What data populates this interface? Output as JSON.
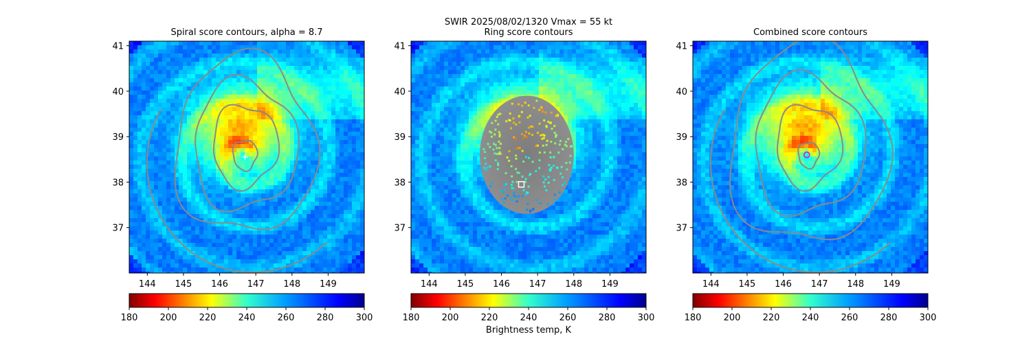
{
  "chart_data": {
    "type": "heatmap",
    "suptitle": "SWIR  2025/08/02/1320    Vmax = 55 kt",
    "colorbar": {
      "label": "Brightness temp, K",
      "range": [
        180,
        300
      ],
      "ticks": [
        180,
        200,
        220,
        240,
        260,
        280,
        300
      ],
      "colormap": "jet_r"
    },
    "storm_center_lonlat": [
      146.7,
      38.6
    ],
    "panels": [
      {
        "title": "Spiral score contours, alpha =  8.7",
        "xlim": [
          143.5,
          150.0
        ],
        "ylim": [
          36.0,
          41.1
        ],
        "xticks": [
          144,
          145,
          146,
          147,
          148,
          149
        ],
        "yticks": [
          37,
          38,
          39,
          40,
          41
        ],
        "marker": {
          "type": "plus",
          "lon": 146.7,
          "lat": 38.55,
          "color": "#ffffff"
        },
        "contour_levels": [
          0.35,
          0.95,
          1.5,
          2.05
        ]
      },
      {
        "title": "Ring score contours",
        "xlim": [
          143.5,
          150.0
        ],
        "ylim": [
          36.0,
          41.1
        ],
        "xticks": [
          144,
          145,
          146,
          147,
          148,
          149
        ],
        "yticks": [
          37,
          38,
          39,
          40,
          41
        ],
        "marker": {
          "type": "square",
          "lon": 146.55,
          "lat": 37.95,
          "color": "#ffffff"
        },
        "ring_region": {
          "lon": 146.7,
          "lat": 38.6,
          "radius_deg": 1.3
        }
      },
      {
        "title": "Combined score contours",
        "xlim": [
          143.5,
          150.0
        ],
        "ylim": [
          36.0,
          41.1
        ],
        "xticks": [
          144,
          145,
          146,
          147,
          148,
          149
        ],
        "yticks": [
          37,
          38,
          39,
          40,
          41
        ],
        "marker": {
          "type": "circle",
          "lon": 146.65,
          "lat": 38.6,
          "color": "#cc33cc"
        },
        "contour_levels": [
          0.3,
          0.95,
          1.6,
          2.3
        ]
      }
    ],
    "contour_color": "#8a8a8a"
  }
}
